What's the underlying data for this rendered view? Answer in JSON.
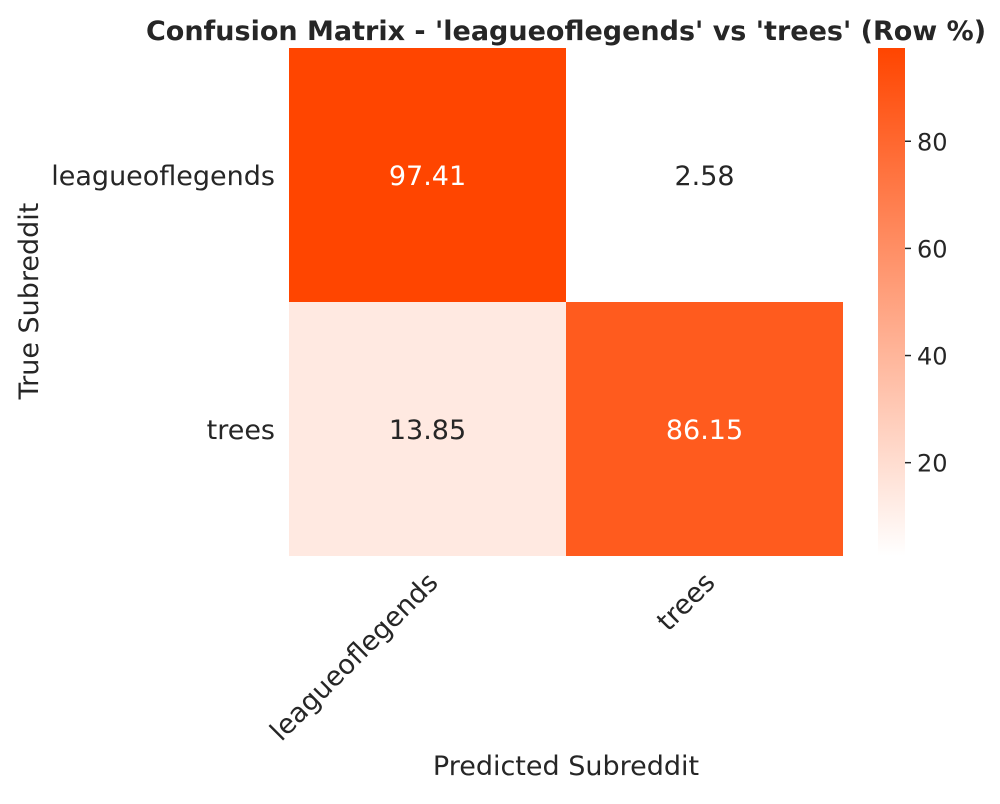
{
  "chart_data": {
    "type": "heatmap",
    "title": "Confusion Matrix - 'leagueoflegends' vs 'trees' (Row %)",
    "xlabel": "Predicted Subreddit",
    "ylabel": "True Subreddit",
    "x_categories": [
      "leagueoflegends",
      "trees"
    ],
    "y_categories": [
      "leagueoflegends",
      "trees"
    ],
    "values": [
      [
        97.41,
        2.58
      ],
      [
        13.85,
        86.15
      ]
    ],
    "cell_labels": [
      [
        "97.41",
        "2.58"
      ],
      [
        "13.85",
        "86.15"
      ]
    ],
    "colorbar": {
      "min": 2.58,
      "max": 97.41,
      "ticks": [
        20,
        40,
        60,
        80
      ],
      "tick_labels": [
        "20",
        "40",
        "60",
        "80"
      ]
    },
    "colormap": {
      "low": "#ffffff",
      "high": "#ff4500"
    },
    "annotation_colors": {
      "dark": "#262626",
      "light": "#ffffff"
    },
    "grid": false
  }
}
